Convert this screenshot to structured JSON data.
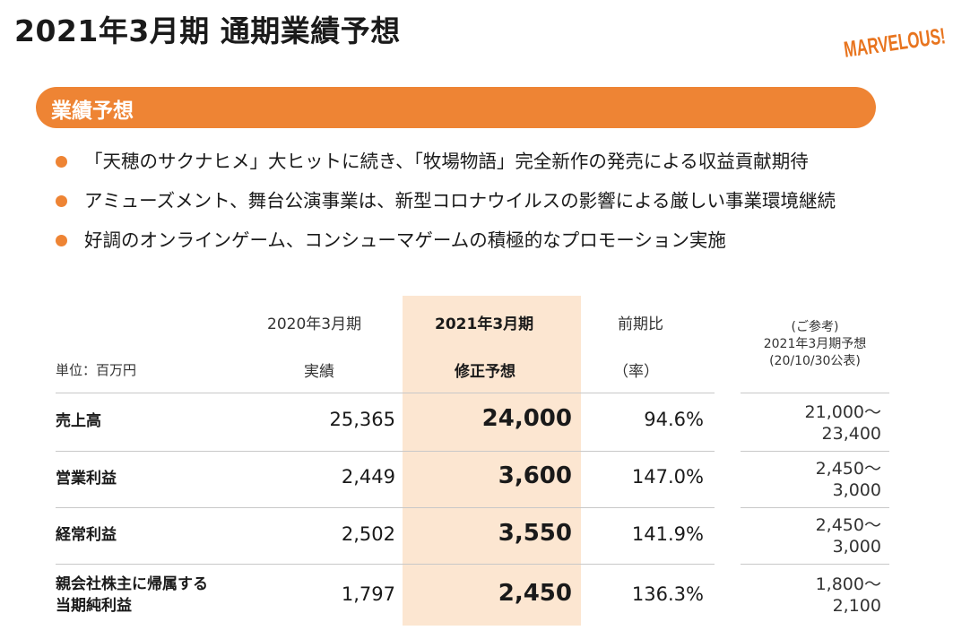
{
  "title": "2021年3月期 通期業績予想",
  "logo": {
    "text": "MARVELOUS!",
    "color": "#e8741e"
  },
  "section": {
    "label": "業績予想",
    "color": "#ee8434"
  },
  "bullets": [
    "「天穂のサクナヒメ」大ヒットに続き、「牧場物語」完全新作の発売による収益貢献期待",
    "アミューズメント、舞台公演事業は、新型コロナウイルスの影響による厳しい事業環境継続",
    "好調のオンラインゲーム、コンシューマゲームの積極的なプロモーション実施"
  ],
  "table": {
    "unit": "単位：百万円",
    "columns": {
      "prev": {
        "line1": "2020年3月期",
        "line2": "実績"
      },
      "fcst": {
        "line1": "2021年3月期",
        "line2": "修正予想"
      },
      "yoy": {
        "line1": "前期比",
        "line2": "（率）"
      },
      "ref": {
        "line1": "(ご参考)",
        "line2": "2021年3月期予想",
        "line3": "(20/10/30公表)"
      }
    },
    "rows": [
      {
        "label1": "売上高",
        "label2": "",
        "prev": "25,365",
        "fcst": "24,000",
        "yoy": "94.6%",
        "ref1": "21,000～",
        "ref2": "23,400"
      },
      {
        "label1": "営業利益",
        "label2": "",
        "prev": "2,449",
        "fcst": "3,600",
        "yoy": "147.0%",
        "ref1": "2,450～",
        "ref2": "3,000"
      },
      {
        "label1": "経常利益",
        "label2": "",
        "prev": "2,502",
        "fcst": "3,550",
        "yoy": "141.9%",
        "ref1": "2,450～",
        "ref2": "3,000"
      },
      {
        "label1": "親会社株主に帰属する",
        "label2": "当期純利益",
        "prev": "1,797",
        "fcst": "2,450",
        "yoy": "136.3%",
        "ref1": "1,800～",
        "ref2": "2,100"
      }
    ]
  }
}
